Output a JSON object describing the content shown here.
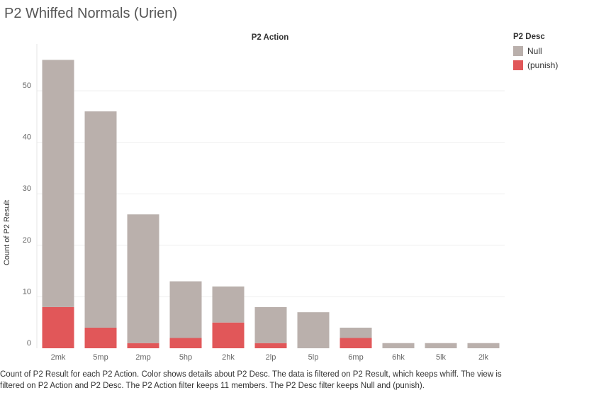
{
  "title": "P2 Whiffed Normals (Urien)",
  "chart_data": {
    "type": "bar",
    "stacked": true,
    "column_header": "P2 Action",
    "ylabel": "Count of P2 Result",
    "ylim": [
      0,
      58
    ],
    "yticks": [
      0,
      10,
      20,
      30,
      40,
      50
    ],
    "grid": true,
    "categories": [
      "2mk",
      "5mp",
      "2mp",
      "5hp",
      "2hk",
      "2lp",
      "5lp",
      "6mp",
      "6hk",
      "5lk",
      "2lk"
    ],
    "series": [
      {
        "name": "(punish)",
        "color": "#e15759",
        "values": [
          8,
          4,
          1,
          2,
          5,
          1,
          0,
          2,
          0,
          0,
          0
        ]
      },
      {
        "name": "Null",
        "color": "#bab0ac",
        "values": [
          48,
          42,
          25,
          11,
          7,
          7,
          7,
          2,
          1,
          1,
          1
        ]
      }
    ],
    "legend": {
      "title": "P2 Desc",
      "placement": "right",
      "items": [
        {
          "label": "Null",
          "color": "#bab0ac"
        },
        {
          "label": "(punish)",
          "color": "#e15759"
        }
      ]
    }
  },
  "caption": "Count of P2 Result for each P2 Action.  Color shows details about P2 Desc. The data is filtered on P2 Result, which keeps whiff. The view is filtered on P2 Action and P2 Desc. The P2 Action filter keeps 11 members. The P2 Desc filter keeps Null and (punish)."
}
